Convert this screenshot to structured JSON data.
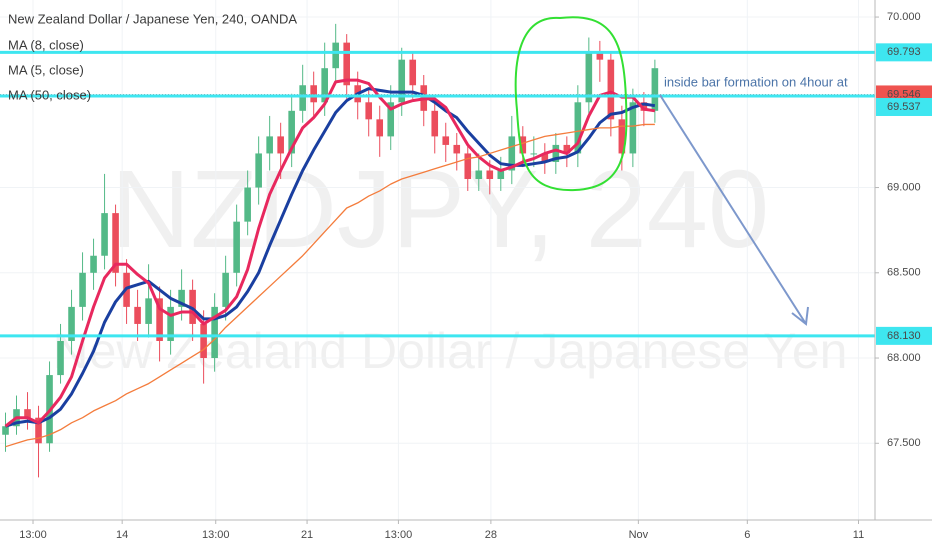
{
  "chart_data": {
    "type": "candlestick",
    "title": "New Zealand Dollar / Japanese Yen, 240, OANDA",
    "watermark": "NZDJPY, 240",
    "watermark_subtitle": "New Zealand Dollar / Japanese Yen",
    "annotation": "inside bar formation on 4hour at",
    "up_color": "#53b987",
    "down_color": "#eb4d5c",
    "xlim": [
      -0.5,
      79
    ],
    "xticks": [
      {
        "value": 2.5,
        "label": "13:00"
      },
      {
        "value": 10.6,
        "label": "14"
      },
      {
        "value": 19.1,
        "label": "13:00"
      },
      {
        "value": 27.4,
        "label": "21"
      },
      {
        "value": 35.7,
        "label": "13:00"
      },
      {
        "value": 44.1,
        "label": "28"
      },
      {
        "value": 57.5,
        "label": "Nov"
      },
      {
        "value": 67.4,
        "label": "6"
      },
      {
        "value": 77.5,
        "label": "11"
      }
    ],
    "ylim": [
      67.05,
      70.1
    ],
    "yticks": [
      {
        "value": 70,
        "label": "70.000"
      },
      {
        "value": 69,
        "label": "69.000"
      },
      {
        "value": 68.5,
        "label": "68.500"
      },
      {
        "value": 68,
        "label": "68.000"
      },
      {
        "value": 67.5,
        "label": "67.500"
      }
    ],
    "open": [
      67.55,
      67.6,
      67.7,
      67.65,
      67.5,
      67.9,
      68.1,
      68.3,
      68.5,
      68.6,
      68.85,
      68.5,
      68.3,
      68.2,
      68.35,
      68.1,
      68.3,
      68.4,
      68.2,
      68.0,
      68.3,
      68.5,
      68.8,
      69.0,
      69.2,
      69.3,
      69.2,
      69.45,
      69.6,
      69.5,
      69.7,
      69.85,
      69.6,
      69.5,
      69.4,
      69.3,
      69.5,
      69.75,
      69.6,
      69.45,
      69.3,
      69.25,
      69.2,
      69.05,
      69.1,
      69.05,
      69.1,
      69.3,
      69.2,
      69.2,
      69.15,
      69.25,
      69.2,
      69.5,
      69.8,
      69.75,
      69.4,
      69.2,
      69.5,
      69.45
    ],
    "high": [
      67.68,
      67.78,
      67.8,
      67.72,
      67.98,
      68.2,
      68.4,
      68.62,
      68.7,
      69.08,
      68.9,
      68.58,
      68.4,
      68.55,
      68.42,
      68.4,
      68.52,
      68.46,
      68.28,
      68.38,
      68.6,
      68.9,
      69.1,
      69.3,
      69.42,
      69.38,
      69.55,
      69.72,
      69.68,
      69.85,
      69.96,
      69.9,
      69.68,
      69.58,
      69.48,
      69.6,
      69.82,
      69.8,
      69.66,
      69.52,
      69.38,
      69.32,
      69.26,
      69.2,
      69.16,
      69.18,
      69.42,
      69.36,
      69.3,
      69.26,
      69.32,
      69.3,
      69.6,
      69.88,
      69.86,
      69.8,
      69.48,
      69.58,
      69.56,
      69.75
    ],
    "low": [
      67.45,
      67.55,
      67.58,
      67.3,
      67.45,
      67.85,
      68.02,
      68.22,
      68.4,
      68.52,
      68.42,
      68.2,
      68.1,
      68.12,
      67.98,
      68.02,
      68.22,
      68.1,
      67.85,
      67.92,
      68.22,
      68.42,
      68.72,
      68.9,
      69.1,
      69.05,
      69.12,
      69.38,
      69.4,
      69.42,
      69.62,
      69.52,
      69.4,
      69.3,
      69.18,
      69.22,
      69.42,
      69.52,
      69.36,
      69.2,
      69.15,
      69.1,
      68.98,
      68.98,
      68.96,
      68.98,
      69.02,
      69.12,
      69.12,
      69.08,
      69.08,
      69.12,
      69.12,
      69.42,
      69.62,
      69.3,
      69.1,
      69.12,
      69.36,
      69.38
    ],
    "close": [
      67.6,
      67.7,
      67.65,
      67.5,
      67.9,
      68.1,
      68.3,
      68.5,
      68.6,
      68.85,
      68.5,
      68.3,
      68.2,
      68.35,
      68.1,
      68.3,
      68.4,
      68.2,
      68.0,
      68.3,
      68.5,
      68.8,
      69.0,
      69.2,
      69.3,
      69.2,
      69.45,
      69.6,
      69.5,
      69.7,
      69.85,
      69.6,
      69.5,
      69.4,
      69.3,
      69.5,
      69.75,
      69.6,
      69.45,
      69.3,
      69.25,
      69.2,
      69.05,
      69.1,
      69.05,
      69.1,
      69.3,
      69.2,
      69.2,
      69.15,
      69.25,
      69.2,
      69.5,
      69.8,
      69.75,
      69.4,
      69.2,
      69.5,
      69.45,
      69.7
    ],
    "series": [
      {
        "name": "MA (8, close)",
        "color": "#1a3fa0",
        "width": 3,
        "values": [
          67.6,
          67.62,
          67.63,
          67.62,
          67.65,
          67.7,
          67.79,
          67.91,
          68.04,
          68.21,
          68.33,
          68.41,
          68.43,
          68.45,
          68.4,
          68.35,
          68.32,
          68.29,
          68.23,
          68.23,
          68.25,
          68.3,
          68.39,
          68.5,
          68.66,
          68.81,
          68.96,
          69.1,
          69.22,
          69.33,
          69.44,
          69.51,
          69.55,
          69.58,
          69.57,
          69.56,
          69.56,
          69.56,
          69.54,
          69.5,
          69.45,
          69.41,
          69.33,
          69.26,
          69.19,
          69.14,
          69.13,
          69.13,
          69.14,
          69.15,
          69.17,
          69.18,
          69.21,
          69.29,
          69.38,
          69.43,
          69.44,
          69.47,
          69.49,
          69.48
        ]
      },
      {
        "name": "MA (5, close)",
        "color": "#e8285e",
        "width": 3,
        "values": [
          67.6,
          67.65,
          67.65,
          67.62,
          67.69,
          67.77,
          67.89,
          68.1,
          68.3,
          68.47,
          68.55,
          68.55,
          68.49,
          68.44,
          68.29,
          68.25,
          68.27,
          68.27,
          68.2,
          68.24,
          68.28,
          68.36,
          68.52,
          68.76,
          68.96,
          69.1,
          69.23,
          69.35,
          69.41,
          69.49,
          69.62,
          69.63,
          69.63,
          69.61,
          69.53,
          69.46,
          69.49,
          69.51,
          69.52,
          69.52,
          69.47,
          69.36,
          69.25,
          69.18,
          69.13,
          69.1,
          69.12,
          69.15,
          69.17,
          69.2,
          69.22,
          69.2,
          69.26,
          69.42,
          69.54,
          69.56,
          69.53,
          69.53,
          69.46,
          69.45
        ]
      },
      {
        "name": "MA (50, close)",
        "color": "#f47c3c",
        "width": 1.3,
        "values": [
          67.48,
          67.5,
          67.52,
          67.53,
          67.55,
          67.58,
          67.62,
          67.65,
          67.69,
          67.72,
          67.75,
          67.79,
          67.82,
          67.85,
          67.89,
          67.93,
          67.97,
          68.01,
          68.05,
          68.11,
          68.18,
          68.24,
          68.3,
          68.36,
          68.42,
          68.48,
          68.54,
          68.6,
          68.67,
          68.74,
          68.81,
          68.88,
          68.91,
          68.95,
          68.98,
          69.02,
          69.05,
          69.07,
          69.09,
          69.11,
          69.13,
          69.15,
          69.17,
          69.18,
          69.2,
          69.22,
          69.24,
          69.26,
          69.28,
          69.3,
          69.31,
          69.32,
          69.33,
          69.34,
          69.35,
          69.35,
          69.36,
          69.36,
          69.37,
          69.37
        ]
      }
    ],
    "price_levels": [
      {
        "value": 69.793,
        "label": "69.793",
        "color": "#3ee6f0",
        "style": "solid",
        "label_color": "#3ee6f0",
        "text_color": "#000000"
      },
      {
        "value": 69.546,
        "label": "69.546",
        "color": "#9aa0a6",
        "style": "dotted",
        "label_color": "#ef5350",
        "text_color": "#ffffff"
      },
      {
        "value": 69.537,
        "label": "69.537",
        "color": "#3ee6f0",
        "style": "solid",
        "label_color": "#3ee6f0",
        "text_color": "#000000"
      },
      {
        "value": 68.13,
        "label": "68.130",
        "color": "#3ee6f0",
        "style": "solid",
        "label_color": "#3ee6f0",
        "text_color": "#000000"
      }
    ]
  }
}
